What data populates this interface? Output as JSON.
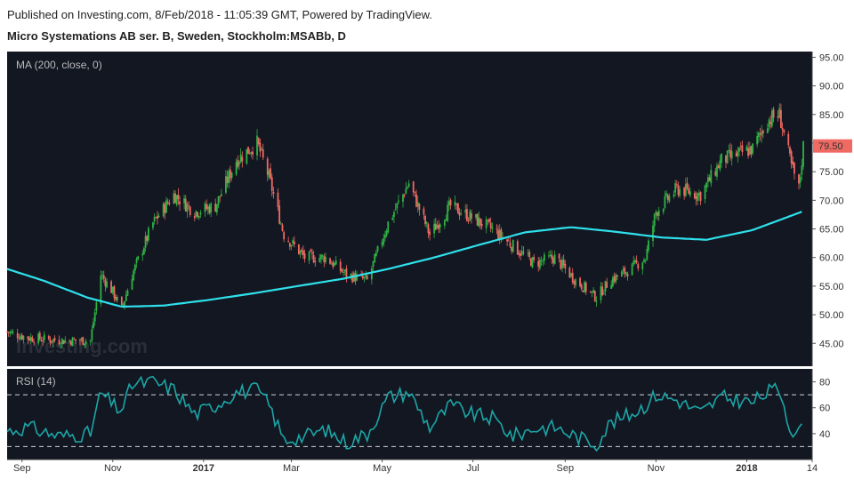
{
  "header": {
    "published": "Published on Investing.com, 8/Feb/2018 - 11:05:39 GMT, Powered by TradingView.",
    "title": "Micro Systemations AB ser. B, Sweden, Stockholm:MSABb, D"
  },
  "chart_data": [
    {
      "type": "candlestick",
      "title": "Micro Systemations AB ser. B, Sweden, Stockholm:MSABb, D",
      "indicator_label": "MA (200, close, 0)",
      "ylim": [
        41,
        96
      ],
      "y_ticks": [
        "95.00",
        "90.00",
        "85.00",
        "80.00",
        "75.00",
        "70.00",
        "65.00",
        "60.00",
        "55.00",
        "50.00",
        "45.00"
      ],
      "x_ticks": [
        "Sep",
        "Nov",
        "2017",
        "Mar",
        "May",
        "Jul",
        "Sep",
        "Nov",
        "2018",
        "14"
      ],
      "last_price": "79.50",
      "watermark": "Investing.com",
      "colors": {
        "up": "#2fb344",
        "down": "#f06a63",
        "ma": "#2ee1ec",
        "price_label": "#f06a63",
        "background": "#131722"
      },
      "close_path": [
        [
          "2016-08-22",
          47
        ],
        [
          "2016-09-05",
          46
        ],
        [
          "2016-09-26",
          45.5
        ],
        [
          "2016-10-17",
          45.5
        ],
        [
          "2016-10-24",
          57
        ],
        [
          "2016-11-01",
          54
        ],
        [
          "2016-11-07",
          51
        ],
        [
          "2016-11-14",
          57
        ],
        [
          "2016-11-28",
          66
        ],
        [
          "2016-12-12",
          71
        ],
        [
          "2016-12-26",
          68
        ],
        [
          "2017-01-09",
          69
        ],
        [
          "2017-01-23",
          77
        ],
        [
          "2017-02-06",
          80
        ],
        [
          "2017-02-14",
          74
        ],
        [
          "2017-02-24",
          64
        ],
        [
          "2017-03-10",
          60
        ],
        [
          "2017-03-24",
          60
        ],
        [
          "2017-04-07",
          57
        ],
        [
          "2017-04-21",
          56
        ],
        [
          "2017-05-05",
          66
        ],
        [
          "2017-05-19",
          73
        ],
        [
          "2017-06-02",
          64
        ],
        [
          "2017-06-16",
          69
        ],
        [
          "2017-06-30",
          67
        ],
        [
          "2017-07-14",
          65
        ],
        [
          "2017-07-28",
          62
        ],
        [
          "2017-08-11",
          59
        ],
        [
          "2017-08-25",
          60
        ],
        [
          "2017-09-08",
          56
        ],
        [
          "2017-09-22",
          53
        ],
        [
          "2017-10-01",
          56
        ],
        [
          "2017-10-15",
          58
        ],
        [
          "2017-10-25",
          60
        ],
        [
          "2017-11-01",
          68
        ],
        [
          "2017-11-15",
          72
        ],
        [
          "2017-12-01",
          71
        ],
        [
          "2017-12-15",
          77
        ],
        [
          "2018-01-05",
          79
        ],
        [
          "2018-01-15",
          84
        ],
        [
          "2018-01-23",
          85
        ],
        [
          "2018-01-31",
          76
        ],
        [
          "2018-02-05",
          72
        ],
        [
          "2018-02-08",
          79.5
        ]
      ],
      "ma_200": [
        [
          "2016-08-22",
          58
        ],
        [
          "2016-09-15",
          56
        ],
        [
          "2016-10-15",
          53
        ],
        [
          "2016-11-07",
          51.4
        ],
        [
          "2016-12-05",
          51.6
        ],
        [
          "2017-01-05",
          52.6
        ],
        [
          "2017-02-05",
          53.8
        ],
        [
          "2017-03-05",
          55.0
        ],
        [
          "2017-04-05",
          56.3
        ],
        [
          "2017-05-05",
          58.0
        ],
        [
          "2017-06-05",
          60.0
        ],
        [
          "2017-07-05",
          62.2
        ],
        [
          "2017-08-05",
          64.4
        ],
        [
          "2017-09-05",
          65.3
        ],
        [
          "2017-10-05",
          64.5
        ],
        [
          "2017-11-05",
          63.5
        ],
        [
          "2017-12-05",
          63.1
        ],
        [
          "2018-01-05",
          64.8
        ],
        [
          "2018-02-07",
          68.0
        ]
      ]
    },
    {
      "type": "line",
      "indicator_label": "RSI (14)",
      "ylim": [
        20,
        90
      ],
      "y_ticks": [
        "80",
        "60",
        "40"
      ],
      "guides": [
        70,
        30
      ],
      "colors": {
        "line": "#1ba6a6"
      },
      "points": [
        [
          "2016-08-22",
          42
        ],
        [
          "2016-09-05",
          45
        ],
        [
          "2016-09-26",
          38
        ],
        [
          "2016-10-17",
          40
        ],
        [
          "2016-10-24",
          72
        ],
        [
          "2016-11-01",
          62
        ],
        [
          "2016-11-07",
          58
        ],
        [
          "2016-11-14",
          78
        ],
        [
          "2016-11-28",
          80
        ],
        [
          "2016-12-12",
          74
        ],
        [
          "2016-12-26",
          55
        ],
        [
          "2017-01-09",
          62
        ],
        [
          "2017-01-23",
          72
        ],
        [
          "2017-02-06",
          74
        ],
        [
          "2017-02-14",
          62
        ],
        [
          "2017-02-24",
          35
        ],
        [
          "2017-03-10",
          38
        ],
        [
          "2017-03-24",
          43
        ],
        [
          "2017-04-07",
          33
        ],
        [
          "2017-04-21",
          40
        ],
        [
          "2017-05-05",
          68
        ],
        [
          "2017-05-19",
          72
        ],
        [
          "2017-06-02",
          45
        ],
        [
          "2017-06-16",
          62
        ],
        [
          "2017-06-30",
          55
        ],
        [
          "2017-07-14",
          52
        ],
        [
          "2017-07-28",
          38
        ],
        [
          "2017-08-11",
          44
        ],
        [
          "2017-08-25",
          45
        ],
        [
          "2017-09-08",
          38
        ],
        [
          "2017-09-22",
          32
        ],
        [
          "2017-10-01",
          48
        ],
        [
          "2017-10-15",
          55
        ],
        [
          "2017-10-25",
          62
        ],
        [
          "2017-11-01",
          70
        ],
        [
          "2017-11-15",
          66
        ],
        [
          "2017-12-01",
          56
        ],
        [
          "2017-12-15",
          68
        ],
        [
          "2018-01-05",
          64
        ],
        [
          "2018-01-15",
          72
        ],
        [
          "2018-01-23",
          75
        ],
        [
          "2018-01-31",
          42
        ],
        [
          "2018-02-05",
          40
        ],
        [
          "2018-02-08",
          50
        ]
      ]
    }
  ]
}
